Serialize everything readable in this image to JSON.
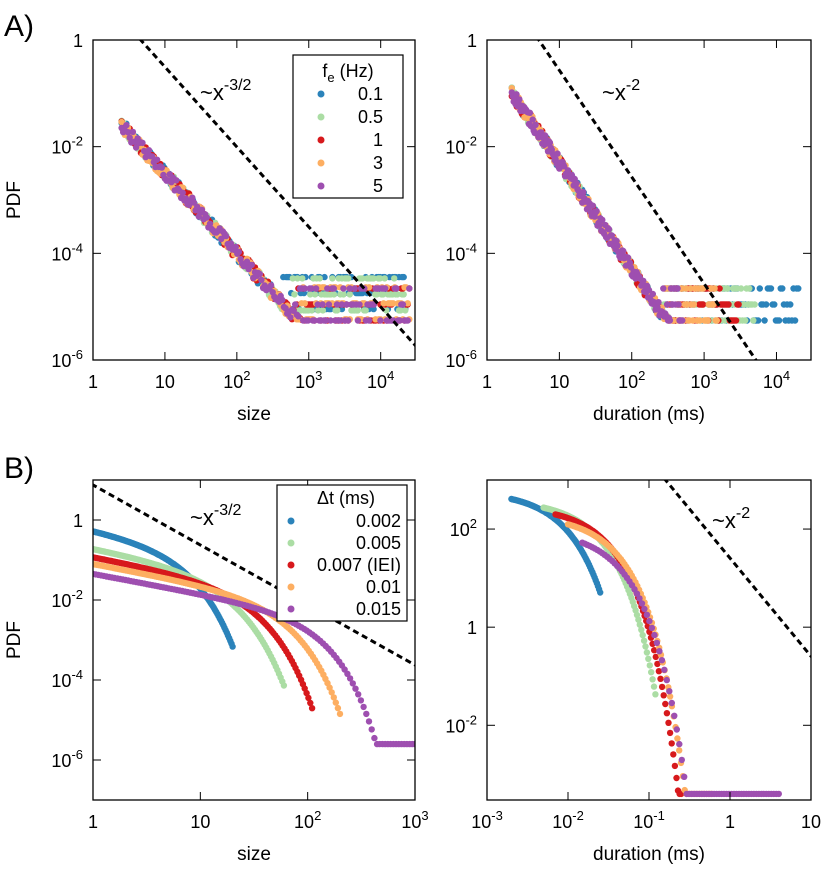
{
  "panel_labels": [
    "A)",
    "B)"
  ],
  "colors": {
    "blue": "#2b83ba",
    "green": "#abdda4",
    "red": "#d7191c",
    "orange": "#fdae61",
    "purple": "#9e4fb0"
  },
  "chart_data": [
    {
      "id": "A-size",
      "type": "scatter",
      "xlabel": "size",
      "ylabel": "PDF",
      "xscale": "log",
      "yscale": "log",
      "xlim": [
        1,
        30000
      ],
      "ylim": [
        1e-06,
        1
      ],
      "xticks": [
        {
          "v": 1,
          "t": "1"
        },
        {
          "v": 10,
          "t": "10"
        },
        {
          "v": 100,
          "t": "10",
          "e": "2"
        },
        {
          "v": 1000,
          "t": "10",
          "e": "3"
        },
        {
          "v": 10000,
          "t": "10",
          "e": "4"
        }
      ],
      "yticks": [
        {
          "v": 1,
          "t": "1"
        },
        {
          "v": 0.01,
          "t": "10",
          "e": "-2"
        },
        {
          "v": 0.0001,
          "t": "10",
          "e": "-4"
        },
        {
          "v": 1e-06,
          "t": "10",
          "e": "-6"
        }
      ],
      "ref_line": {
        "label": "~x",
        "exp": "-3/2",
        "slope": -1.5,
        "x0": 2,
        "y0": 3.5
      },
      "legend": {
        "title": "f",
        "title_sub": "e",
        "title_rest": " (Hz)",
        "placement": "top-right"
      },
      "series": [
        {
          "name": "0.1",
          "color": "blue",
          "shape": "powerlaw",
          "a": 0.1,
          "alpha": -1.5,
          "xstart": 2.5,
          "xend": 22000,
          "floor": 9e-06
        },
        {
          "name": "0.5",
          "color": "green",
          "shape": "powerlaw",
          "a": 0.1,
          "alpha": -1.5,
          "xstart": 2.5,
          "xend": 22000,
          "floor": 8.5e-06
        },
        {
          "name": "1",
          "color": "red",
          "shape": "powerlaw",
          "a": 0.1,
          "alpha": -1.5,
          "xstart": 2.5,
          "xend": 25000,
          "floor": 5.5e-06
        },
        {
          "name": "3",
          "color": "orange",
          "shape": "powerlaw",
          "a": 0.1,
          "alpha": -1.5,
          "xstart": 2.5,
          "xend": 25000,
          "floor": 5.8e-06
        },
        {
          "name": "5",
          "color": "purple",
          "shape": "powerlaw",
          "a": 0.1,
          "alpha": -1.5,
          "xstart": 2.5,
          "xend": 25000,
          "floor": 5.5e-06
        }
      ]
    },
    {
      "id": "A-duration",
      "type": "scatter",
      "xlabel": "duration (ms)",
      "ylabel": "",
      "xscale": "log",
      "yscale": "log",
      "xlim": [
        1,
        30000
      ],
      "ylim": [
        1e-06,
        1
      ],
      "xticks": [
        {
          "v": 1,
          "t": "1"
        },
        {
          "v": 10,
          "t": "10"
        },
        {
          "v": 100,
          "t": "10",
          "e": "2"
        },
        {
          "v": 1000,
          "t": "10",
          "e": "3"
        },
        {
          "v": 10000,
          "t": "10",
          "e": "4"
        }
      ],
      "yticks": [
        {
          "v": 1,
          "t": "1"
        },
        {
          "v": 0.01,
          "t": "10",
          "e": "-2"
        },
        {
          "v": 0.0001,
          "t": "10",
          "e": "-4"
        },
        {
          "v": 1e-06,
          "t": "10",
          "e": "-6"
        }
      ],
      "ref_line": {
        "label": "~x",
        "exp": "-2",
        "slope": -2,
        "x0": 3,
        "y0": 3
      },
      "series": [
        {
          "name": "0.1",
          "color": "blue",
          "shape": "powerlaw",
          "a": 0.5,
          "alpha": -2.0,
          "xstart": 2.2,
          "xend": 20000,
          "floor": 5.5e-06
        },
        {
          "name": "0.5",
          "color": "green",
          "shape": "powerlaw",
          "a": 0.5,
          "alpha": -2.0,
          "xstart": 2.2,
          "xend": 5000,
          "floor": 5.5e-06
        },
        {
          "name": "1",
          "color": "red",
          "shape": "powerlaw",
          "a": 0.5,
          "alpha": -2.0,
          "xstart": 2.2,
          "xend": 3000,
          "floor": 5.5e-06
        },
        {
          "name": "3",
          "color": "orange",
          "shape": "powerlaw",
          "a": 0.5,
          "alpha": -2.0,
          "xstart": 2.2,
          "xend": 1500,
          "floor": 5.5e-06
        },
        {
          "name": "5",
          "color": "purple",
          "shape": "powerlaw",
          "a": 0.5,
          "alpha": -2.0,
          "xstart": 2.2,
          "xend": 500,
          "floor": 5.5e-06
        }
      ]
    },
    {
      "id": "B-size",
      "type": "scatter",
      "xlabel": "size",
      "ylabel": "PDF",
      "xscale": "log",
      "yscale": "log",
      "xlim": [
        1,
        1000
      ],
      "ylim": [
        1e-07,
        10
      ],
      "xticks": [
        {
          "v": 1,
          "t": "1"
        },
        {
          "v": 10,
          "t": "10"
        },
        {
          "v": 100,
          "t": "10",
          "e": "2"
        },
        {
          "v": 1000,
          "t": "10",
          "e": "3"
        }
      ],
      "yticks": [
        {
          "v": 1,
          "t": "1"
        },
        {
          "v": 0.01,
          "t": "10",
          "e": "-2"
        },
        {
          "v": 0.0001,
          "t": "10",
          "e": "-4"
        },
        {
          "v": 1e-06,
          "t": "10",
          "e": "-6"
        }
      ],
      "ref_line": {
        "label": "~x",
        "exp": "-3/2",
        "slope": -1.5,
        "x0": 1,
        "y0": 7.5
      },
      "legend": {
        "title": "Δt (ms)",
        "placement": "top-right"
      },
      "series": [
        {
          "name": "0.002",
          "color": "blue",
          "shape": "cutoff",
          "y1": 0.6,
          "xc": 5,
          "beta": 2.4,
          "xend": 20,
          "floor": 1e-07
        },
        {
          "name": "0.005",
          "color": "green",
          "shape": "cutoff",
          "y1": 0.2,
          "xc": 12,
          "beta": 2.2,
          "xend": 60,
          "floor": 2.5e-07
        },
        {
          "name": "0.007 (IEI)",
          "color": "red",
          "shape": "cutoff",
          "y1": 0.12,
          "xc": 22,
          "beta": 2.3,
          "xend": 110,
          "floor": 4.5e-07
        },
        {
          "name": "0.01",
          "color": "orange",
          "shape": "cutoff",
          "y1": 0.08,
          "xc": 45,
          "beta": 2.4,
          "xend": 200,
          "floor": 9e-07
        },
        {
          "name": "0.015",
          "color": "purple",
          "shape": "cutoff",
          "y1": 0.045,
          "xc": 100,
          "beta": 2.6,
          "xend": 1000,
          "floor": 2.5e-06
        }
      ]
    },
    {
      "id": "B-duration",
      "type": "scatter",
      "xlabel": "duration (ms)",
      "ylabel": "",
      "xscale": "log",
      "yscale": "log",
      "xlim": [
        0.001,
        10
      ],
      "ylim": [
        0.0003,
        1000
      ],
      "xticks": [
        {
          "v": 0.001,
          "t": "10",
          "e": "-3"
        },
        {
          "v": 0.01,
          "t": "10",
          "e": "-2"
        },
        {
          "v": 0.1,
          "t": "10",
          "e": "-1"
        },
        {
          "v": 1,
          "t": "1"
        },
        {
          "v": 10,
          "t": "10"
        }
      ],
      "yticks": [
        {
          "v": 100,
          "t": "10",
          "e": "2"
        },
        {
          "v": 1,
          "t": "1"
        },
        {
          "v": 0.01,
          "t": "10",
          "e": "-2"
        }
      ],
      "ref_line": {
        "label": "~x",
        "exp": "-2",
        "slope": -2,
        "x0": 0.08,
        "y0": 4000
      },
      "series": [
        {
          "name": "0.002",
          "color": "blue",
          "shape": "dcut",
          "y0": 600,
          "x0": 0.002,
          "xend": 0.025,
          "rate": 1.45
        },
        {
          "name": "0.005",
          "color": "green",
          "shape": "dcut",
          "y0": 400,
          "x0": 0.005,
          "xend": 0.12,
          "rate": 1.15
        },
        {
          "name": "0.007 (IEI)",
          "color": "red",
          "shape": "dcut",
          "y0": 300,
          "x0": 0.007,
          "xend": 0.25,
          "rate": 1.1
        },
        {
          "name": "0.01",
          "color": "orange",
          "shape": "dcut",
          "y0": 200,
          "x0": 0.01,
          "xend": 0.6,
          "rate": 1.1
        },
        {
          "name": "0.015",
          "color": "purple",
          "shape": "dcut",
          "y0": 100,
          "x0": 0.015,
          "xend": 4,
          "rate": 1.1
        }
      ]
    }
  ]
}
